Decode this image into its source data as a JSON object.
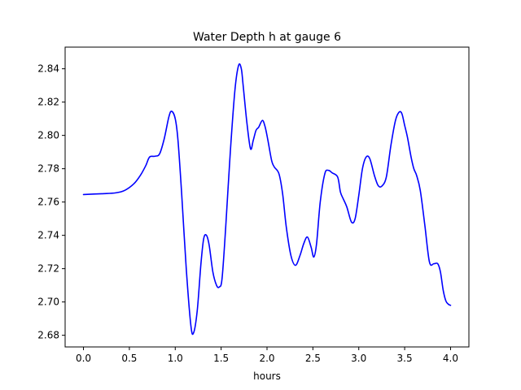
{
  "chart_data": {
    "type": "line",
    "title": "Water Depth h at gauge 6",
    "xlabel": "hours",
    "ylabel": "",
    "xlim": [
      -0.2,
      4.2
    ],
    "ylim": [
      2.673,
      2.853
    ],
    "xticks": [
      0.0,
      0.5,
      1.0,
      1.5,
      2.0,
      2.5,
      3.0,
      3.5,
      4.0
    ],
    "xtick_labels": [
      "0.0",
      "0.5",
      "1.0",
      "1.5",
      "2.0",
      "2.5",
      "3.0",
      "3.5",
      "4.0"
    ],
    "yticks": [
      2.68,
      2.7,
      2.72,
      2.74,
      2.76,
      2.78,
      2.8,
      2.82,
      2.84
    ],
    "ytick_labels": [
      "2.68",
      "2.70",
      "2.72",
      "2.74",
      "2.76",
      "2.78",
      "2.80",
      "2.82",
      "2.84"
    ],
    "grid": false,
    "legend": "none",
    "series": [
      {
        "color": "#0000ff",
        "x": [
          0.0,
          0.2,
          0.35,
          0.45,
          0.55,
          0.62,
          0.68,
          0.72,
          0.78,
          0.83,
          0.88,
          0.93,
          0.96,
          1.0,
          1.03,
          1.07,
          1.12,
          1.17,
          1.2,
          1.24,
          1.28,
          1.31,
          1.34,
          1.37,
          1.41,
          1.45,
          1.48,
          1.51,
          1.55,
          1.6,
          1.65,
          1.69,
          1.72,
          1.74,
          1.78,
          1.82,
          1.85,
          1.88,
          1.91,
          1.95,
          1.98,
          2.01,
          2.05,
          2.08,
          2.13,
          2.17,
          2.21,
          2.26,
          2.31,
          2.36,
          2.4,
          2.44,
          2.48,
          2.51,
          2.54,
          2.58,
          2.63,
          2.67,
          2.71,
          2.77,
          2.8,
          2.83,
          2.87,
          2.92,
          2.96,
          3.0,
          3.04,
          3.08,
          3.12,
          3.17,
          3.21,
          3.25,
          3.3,
          3.35,
          3.4,
          3.44,
          3.47,
          3.5,
          3.53,
          3.57,
          3.6,
          3.63,
          3.67,
          3.72,
          3.77,
          3.82,
          3.86,
          3.89,
          3.92,
          3.95,
          3.98,
          4.0
        ],
        "y": [
          2.7645,
          2.765,
          2.7655,
          2.767,
          2.771,
          2.776,
          2.782,
          2.787,
          2.7875,
          2.789,
          2.798,
          2.811,
          2.8145,
          2.81,
          2.797,
          2.765,
          2.72,
          2.686,
          2.6815,
          2.695,
          2.723,
          2.738,
          2.74,
          2.734,
          2.718,
          2.71,
          2.709,
          2.714,
          2.745,
          2.79,
          2.827,
          2.842,
          2.84,
          2.83,
          2.808,
          2.792,
          2.797,
          2.803,
          2.805,
          2.809,
          2.805,
          2.797,
          2.785,
          2.781,
          2.777,
          2.765,
          2.745,
          2.728,
          2.722,
          2.728,
          2.735,
          2.739,
          2.733,
          2.727,
          2.735,
          2.76,
          2.777,
          2.779,
          2.7775,
          2.775,
          2.766,
          2.762,
          2.757,
          2.748,
          2.75,
          2.764,
          2.78,
          2.787,
          2.786,
          2.776,
          2.77,
          2.7695,
          2.775,
          2.794,
          2.809,
          2.814,
          2.813,
          2.806,
          2.799,
          2.787,
          2.78,
          2.776,
          2.767,
          2.746,
          2.724,
          2.723,
          2.723,
          2.718,
          2.707,
          2.7005,
          2.6985,
          2.698
        ]
      }
    ]
  }
}
